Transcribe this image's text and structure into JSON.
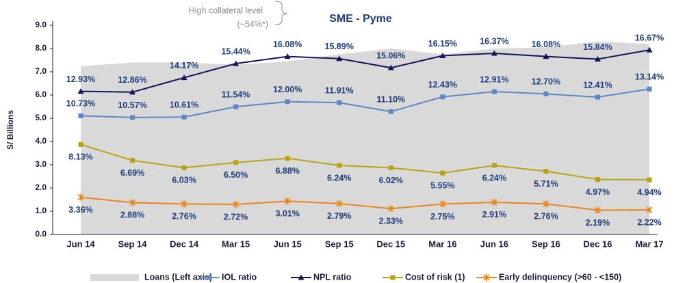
{
  "chart_data": {
    "type": "line",
    "title": "SME - Pyme",
    "annotations": [
      "High collateral level",
      "(~54%*)"
    ],
    "ylabel": "S/ Billions",
    "categories": [
      "Jun 14",
      "Sep 14",
      "Dec 14",
      "Mar 15",
      "Jun 15",
      "Sep 15",
      "Dec 15",
      "Mar 16",
      "Jun 16",
      "Sep 16",
      "Dec 16",
      "Mar 17"
    ],
    "ylim": [
      0,
      9
    ],
    "yticks": [
      {
        "value": 0,
        "label": "0.0"
      },
      {
        "value": 1,
        "label": "1.0"
      },
      {
        "value": 2,
        "label": "2.0"
      },
      {
        "value": 3,
        "label": "3.0"
      },
      {
        "value": 4,
        "label": "4.0"
      },
      {
        "value": 5,
        "label": "5.0"
      },
      {
        "value": 6,
        "label": "6.0"
      },
      {
        "value": 7,
        "label": "7.0"
      },
      {
        "value": 8,
        "label": "8.0"
      },
      {
        "value": 9,
        "label": "9.0"
      }
    ],
    "y2lim": [
      0,
      18.9
    ],
    "series": [
      {
        "name": "Loans (Left axis)",
        "kind": "area",
        "color": "#d9d9d9",
        "values": [
          7.24,
          7.4,
          7.4,
          7.3,
          7.45,
          7.75,
          8.0,
          7.75,
          8.0,
          8.05,
          8.3,
          8.2
        ]
      },
      {
        "name": "IOL ratio",
        "axis": "y2",
        "color": "#5f86c4",
        "marker": "square",
        "values": [
          10.73,
          10.57,
          10.61,
          11.54,
          12.0,
          11.91,
          11.1,
          12.43,
          12.91,
          12.7,
          12.41,
          13.14
        ],
        "value_labels": [
          "10.73%",
          "10.57%",
          "10.61%",
          "11.54%",
          "12.00%",
          "11.91%",
          "11.10%",
          "12.43%",
          "12.91%",
          "12.70%",
          "12.41%",
          "13.14%"
        ]
      },
      {
        "name": "NPL ratio",
        "axis": "y2",
        "color": "#14145a",
        "marker": "triangle",
        "values": [
          12.93,
          12.86,
          14.17,
          15.44,
          16.08,
          15.89,
          15.06,
          16.15,
          16.37,
          16.08,
          15.84,
          16.67
        ],
        "value_labels": [
          "12.93%",
          "12.86%",
          "14.17%",
          "15.44%",
          "16.08%",
          "15.89%",
          "15.06%",
          "16.15%",
          "16.37%",
          "16.08%",
          "15.84%",
          "16.67%"
        ]
      },
      {
        "name": "Cost of risk (1)",
        "axis": "y2",
        "color": "#b8a314",
        "marker": "square",
        "values": [
          8.13,
          6.69,
          6.03,
          6.5,
          6.88,
          6.24,
          6.02,
          5.55,
          6.24,
          5.71,
          4.97,
          4.94
        ],
        "value_labels": [
          "8.13%",
          "6.69%",
          "6.03%",
          "6.50%",
          "6.88%",
          "6.24%",
          "6.02%",
          "5.55%",
          "6.24%",
          "5.71%",
          "4.97%",
          "4.94%"
        ]
      },
      {
        "name": "Early delinquency  (>60 - <150)",
        "axis": "y2",
        "color": "#e8861a",
        "marker": "star",
        "values": [
          3.36,
          2.88,
          2.76,
          2.72,
          3.01,
          2.79,
          2.33,
          2.75,
          2.91,
          2.76,
          2.19,
          2.22
        ],
        "value_labels": [
          "3.36%",
          "2.88%",
          "2.76%",
          "2.72%",
          "3.01%",
          "2.79%",
          "2.33%",
          "2.75%",
          "2.91%",
          "2.76%",
          "2.19%",
          "2.22%"
        ]
      }
    ]
  }
}
